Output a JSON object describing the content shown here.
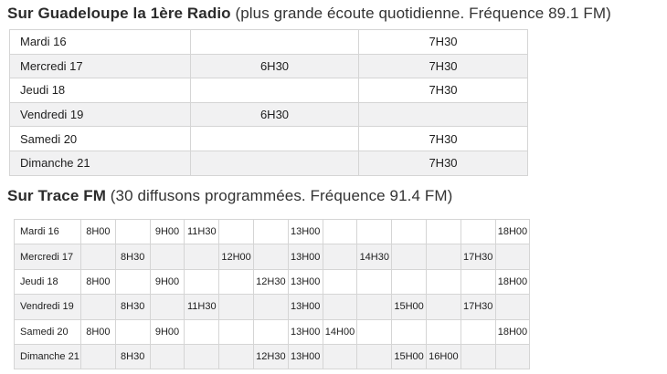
{
  "sections": [
    {
      "title_bold": "Sur Guadeloupe la 1ère Radio",
      "title_rest": " (plus grande écoute quotidienne. Fréquence 89.1 FM)",
      "table": {
        "rows": [
          {
            "day": "Mardi 16",
            "cells": [
              "",
              "7H30"
            ]
          },
          {
            "day": "Mercredi 17",
            "cells": [
              "6H30",
              "7H30"
            ]
          },
          {
            "day": "Jeudi 18",
            "cells": [
              "",
              "7H30"
            ]
          },
          {
            "day": "Vendredi 19",
            "cells": [
              "6H30",
              ""
            ]
          },
          {
            "day": "Samedi 20",
            "cells": [
              "",
              "7H30"
            ]
          },
          {
            "day": "Dimanche 21",
            "cells": [
              "",
              "7H30"
            ]
          }
        ]
      }
    },
    {
      "title_bold": "Sur Trace FM",
      "title_rest": " (30 diffusons programmées. Fréquence 91.4 FM)",
      "table": {
        "rows": [
          {
            "day": "Mardi 16",
            "cells": [
              "8H00",
              "",
              "9H00",
              "11H30",
              "",
              "",
              "13H00",
              "",
              "",
              "",
              "",
              "",
              "18H00"
            ]
          },
          {
            "day": "Mercredi 17",
            "cells": [
              "",
              "8H30",
              "",
              "",
              "12H00",
              "",
              "13H00",
              "",
              "14H30",
              "",
              "",
              "17H30",
              ""
            ]
          },
          {
            "day": "Jeudi 18",
            "cells": [
              "8H00",
              "",
              "9H00",
              "",
              "",
              "12H30",
              "13H00",
              "",
              "",
              "",
              "",
              "",
              "18H00"
            ]
          },
          {
            "day": "Vendredi 19",
            "cells": [
              "",
              "8H30",
              "",
              "11H30",
              "",
              "",
              "13H00",
              "",
              "",
              "15H00",
              "",
              "17H30",
              ""
            ]
          },
          {
            "day": "Samedi 20",
            "cells": [
              "8H00",
              "",
              "9H00",
              "",
              "",
              "",
              "13H00",
              "14H00",
              "",
              "",
              "",
              "",
              "18H00"
            ]
          },
          {
            "day": "Dimanche 21",
            "cells": [
              "",
              "8H30",
              "",
              "",
              "",
              "12H30",
              "13H00",
              "",
              "",
              "15H00",
              "16H00",
              "",
              ""
            ]
          }
        ]
      }
    }
  ],
  "colors": {
    "row_alt": "#f1f1f2",
    "border": "#d5d5d5",
    "title_text": "#2b2b2b",
    "cell_text": "#1d1d1d"
  }
}
